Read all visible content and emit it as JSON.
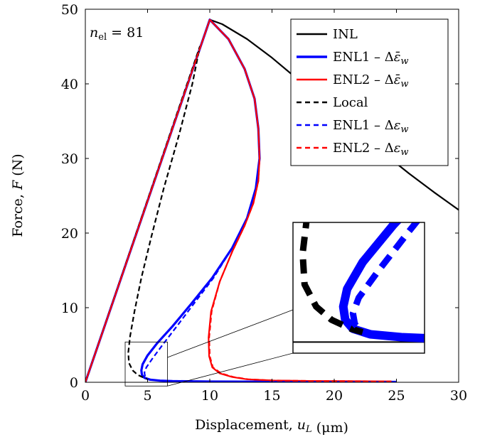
{
  "chart_data": {
    "type": "line",
    "xlabel": "Displacement, u_L (μm)",
    "ylabel": "Force, F (N)",
    "xlim": [
      0,
      30
    ],
    "ylim": [
      0,
      50
    ],
    "x_ticks": [
      0,
      5,
      10,
      15,
      20,
      25,
      30
    ],
    "y_ticks": [
      0,
      10,
      20,
      30,
      40,
      50
    ],
    "annotation": "n_el = 81",
    "grid": false,
    "legend_position": "top-right",
    "series": [
      {
        "name": "INL",
        "color": "#000000",
        "dash": "solid",
        "weight": "thin",
        "x": [
          0,
          10.0,
          11.0,
          13.0,
          15.0,
          17.0,
          20.0,
          23.0,
          26.0,
          28.0,
          30.0
        ],
        "y": [
          0,
          48.6,
          48.0,
          46.0,
          43.5,
          40.7,
          36.5,
          32.0,
          28.0,
          25.5,
          23.1
        ]
      },
      {
        "name": "ENL1 – Δε̄_w",
        "color": "#0000ff",
        "dash": "solid",
        "weight": "thick",
        "x": [
          0,
          10.0,
          11.5,
          12.8,
          13.6,
          13.9,
          14.0,
          13.7,
          13.0,
          11.8,
          10.2,
          8.5,
          7.0,
          5.8,
          5.0,
          4.6,
          4.5,
          4.55,
          4.75,
          5.2,
          6.0,
          7.0,
          10.0,
          15.0,
          20.0,
          25.0
        ],
        "y": [
          0,
          48.6,
          46.0,
          42.0,
          38.0,
          34.0,
          30.0,
          26.0,
          22.0,
          18.0,
          14.0,
          10.5,
          7.5,
          5.3,
          3.6,
          2.4,
          1.6,
          1.0,
          0.6,
          0.35,
          0.22,
          0.15,
          0.1,
          0.08,
          0.06,
          0.05
        ]
      },
      {
        "name": "ENL2 – Δε̄_w",
        "color": "#ff0000",
        "dash": "solid",
        "weight": "thin",
        "x": [
          0,
          10.0,
          11.5,
          12.8,
          13.6,
          13.9,
          14.0,
          13.9,
          13.5,
          12.8,
          11.8,
          10.8,
          10.1,
          9.9,
          9.95,
          10.2,
          10.8,
          11.8,
          13.0,
          15.0,
          18.0,
          21.0,
          24.6
        ],
        "y": [
          0,
          48.6,
          46.0,
          42.0,
          38.0,
          34.0,
          30.0,
          27.0,
          24.0,
          21.0,
          17.5,
          13.5,
          9.5,
          6.0,
          3.5,
          2.0,
          1.2,
          0.7,
          0.4,
          0.25,
          0.18,
          0.15,
          0.12
        ]
      },
      {
        "name": "Local",
        "color": "#000000",
        "dash": "dashed",
        "weight": "thin",
        "x": [
          0,
          9.2,
          8.6,
          7.5,
          6.3,
          5.3,
          4.5,
          3.95,
          3.6,
          3.45,
          3.5,
          3.8,
          4.2,
          4.7,
          5.0
        ],
        "y": [
          0,
          45.0,
          40.0,
          33.0,
          26.0,
          19.5,
          14.0,
          9.5,
          6.2,
          4.0,
          2.6,
          1.6,
          1.0,
          0.6,
          0.45
        ]
      },
      {
        "name": "ENL1 – Δε_w",
        "color": "#0000ff",
        "dash": "dashed",
        "weight": "thin",
        "x": [
          0,
          10.0,
          11.5,
          12.8,
          13.6,
          13.9,
          14.0,
          13.7,
          13.0,
          11.8,
          10.3,
          8.7,
          7.3,
          6.2,
          5.4,
          4.9,
          4.75,
          4.8,
          5.0,
          5.4,
          6.2,
          7.0,
          10.0,
          15.0,
          20.0,
          25.0
        ],
        "y": [
          0,
          48.6,
          46.0,
          42.0,
          38.0,
          34.0,
          30.0,
          26.0,
          22.0,
          18.0,
          14.0,
          10.5,
          7.4,
          5.0,
          3.2,
          2.0,
          1.3,
          0.8,
          0.5,
          0.3,
          0.2,
          0.15,
          0.1,
          0.08,
          0.06,
          0.05
        ]
      },
      {
        "name": "ENL2 – Δε_w",
        "color": "#ff0000",
        "dash": "dashed",
        "weight": "thin",
        "x": [
          0,
          10.0,
          11.5,
          12.8,
          13.6,
          13.9,
          14.0,
          13.9,
          13.5,
          12.8,
          11.8,
          10.8,
          10.15,
          9.95,
          10.0,
          10.25,
          10.9,
          11.9,
          13.1,
          15.0,
          18.0,
          21.0,
          24.6
        ],
        "y": [
          0,
          48.6,
          46.0,
          42.0,
          38.0,
          34.0,
          30.0,
          27.0,
          24.0,
          21.0,
          17.5,
          13.5,
          9.5,
          6.0,
          3.5,
          2.0,
          1.2,
          0.7,
          0.4,
          0.25,
          0.18,
          0.15,
          0.12
        ]
      }
    ],
    "inset": {
      "xlim": [
        3.2,
        6.6
      ],
      "ylim": [
        -0.5,
        5.4
      ]
    }
  }
}
